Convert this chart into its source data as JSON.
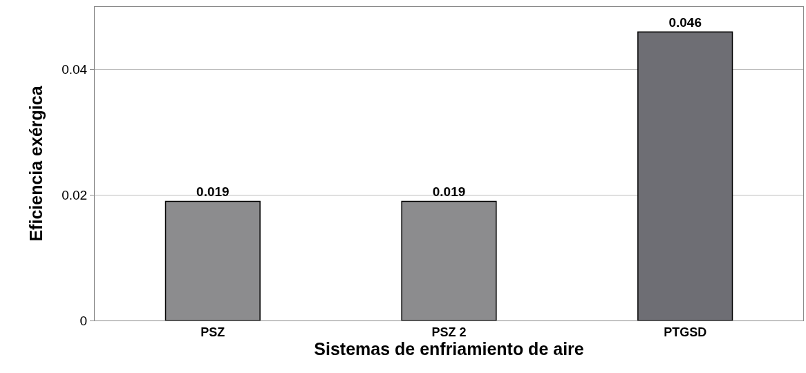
{
  "chart_data": {
    "type": "bar",
    "xlabel": "Sistemas de enfriamiento de aire",
    "ylabel": "Eficiencia exérgica",
    "categories": [
      "PSZ",
      "PSZ 2",
      "PTGSD"
    ],
    "values": [
      0.019,
      0.019,
      0.046
    ],
    "colors": [
      "#8c8c8e",
      "#8c8c8e",
      "#6e6e74"
    ],
    "ylim": [
      0,
      0.05
    ],
    "yticks": [
      0,
      0.02,
      0.04
    ],
    "grid": "y",
    "data_labels": true
  }
}
